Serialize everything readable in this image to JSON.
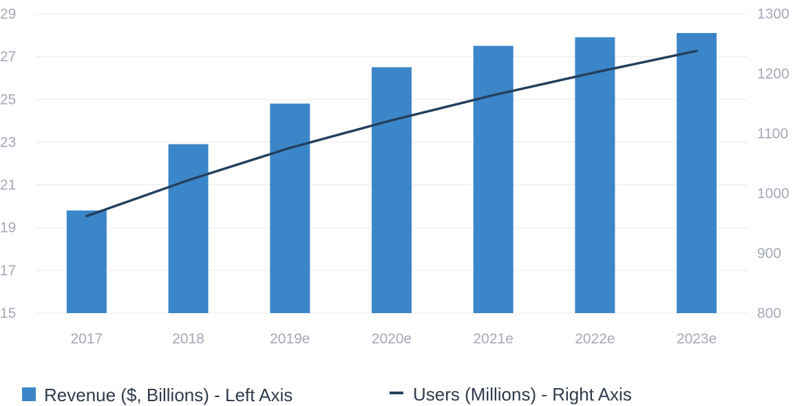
{
  "colors": {
    "bar": "#3b86c8",
    "line": "#23405e",
    "grid": "#e8e8ee",
    "tick": "#a4a8b8",
    "legend_text": "#2f3b4c"
  },
  "legend": {
    "revenue_label": "Revenue ($, Billions) - Left Axis",
    "users_label": "Users (Millions) - Right Axis"
  },
  "chart_data": {
    "type": "bar+line",
    "title": "",
    "categories": [
      "2017",
      "2018",
      "2019e",
      "2020e",
      "2021e",
      "2022e",
      "2023e"
    ],
    "series": [
      {
        "name": "Revenue ($, Billions) - Left Axis",
        "type": "bar",
        "axis": "left",
        "values": [
          19.8,
          22.9,
          24.8,
          26.5,
          27.5,
          27.9,
          28.1
        ]
      },
      {
        "name": "Users (Millions) - Right Axis",
        "type": "line",
        "axis": "right",
        "values": [
          962,
          1022,
          1076,
          1122,
          1164,
          1202,
          1238
        ]
      }
    ],
    "left_axis": {
      "min": 15,
      "max": 29,
      "ticks": [
        "15",
        "17",
        "19",
        "21",
        "23",
        "25",
        "27",
        "29"
      ]
    },
    "right_axis": {
      "min": 800,
      "max": 1300,
      "ticks": [
        "800",
        "900",
        "1000",
        "1100",
        "1200",
        "1300"
      ]
    },
    "grid": true,
    "legend_position": "bottom"
  }
}
